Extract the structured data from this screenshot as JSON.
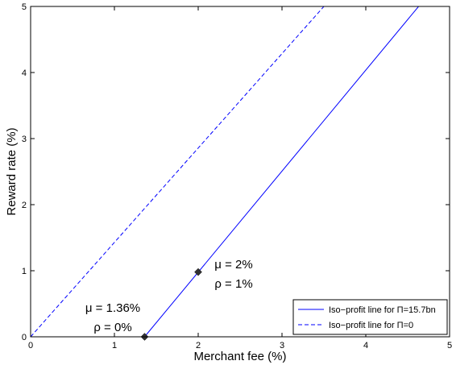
{
  "chart_data": {
    "type": "line",
    "xlabel": "Merchant fee (%)",
    "ylabel": "Reward rate (%)",
    "xlim": [
      0,
      5
    ],
    "ylim": [
      0,
      5
    ],
    "xticks": [
      "0",
      "1",
      "2",
      "3",
      "4",
      "5"
    ],
    "yticks": [
      "0",
      "1",
      "2",
      "3",
      "4",
      "5"
    ],
    "grid": false,
    "legend_position": "bottom-right",
    "series": [
      {
        "name": "Iso−profit line for Π=15.7bn",
        "style": "solid",
        "color": "#0000ff",
        "points": [
          [
            1.36,
            0
          ],
          [
            4.63,
            5
          ],
          [
            5,
            5
          ]
        ]
      },
      {
        "name": "Iso−profit line for Π=0",
        "style": "dashed",
        "color": "#0000ff",
        "points": [
          [
            0,
            0
          ],
          [
            3.5,
            5
          ],
          [
            5,
            5
          ]
        ]
      }
    ],
    "markers": [
      {
        "x": 1.36,
        "y": 0
      },
      {
        "x": 2,
        "y": 0.98
      }
    ],
    "annotations": [
      {
        "line1": "μ = 1.36%",
        "line2": "ρ = 0%"
      },
      {
        "line1": "μ = 2%",
        "line2": "ρ = 1%"
      }
    ]
  }
}
